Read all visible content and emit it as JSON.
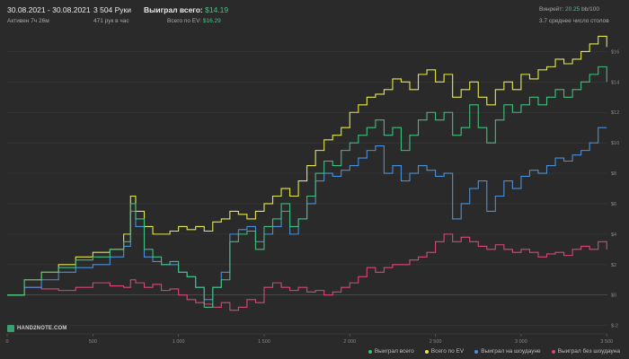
{
  "header": {
    "date_range": "30.08.2021 - 30.08.2021",
    "active_time": "Активен 7ч 26м",
    "hands": "3 504 Руки",
    "hands_per_hour": "471 рук в час",
    "won_label": "Выиграл всего:",
    "won_value": "$14.19",
    "ev_label": "Всего по EV:",
    "ev_value": "$16.29",
    "winrate_label": "Винрейт:",
    "winrate_value": "20.25",
    "winrate_unit": "bb/100",
    "avg_tables": "3.7 среднее число столов"
  },
  "logo": "HAND2NOTE.COM",
  "colors": {
    "background": "#2a2a2a",
    "grid": "#393939",
    "series_total": "#3fbf7f",
    "series_ev": "#e5e84a",
    "series_showdown": "#4a90d9",
    "series_nonshowdown": "#d9477a"
  },
  "chart_data": {
    "type": "line",
    "xlim": [
      0,
      3504
    ],
    "ylim": [
      -2.2,
      17.5
    ],
    "x_ticks": [
      "0",
      "500",
      "1 000",
      "1 500",
      "2 000",
      "2 500",
      "3 000",
      "3 500"
    ],
    "x_tick_values": [
      0,
      500,
      1000,
      1500,
      2000,
      2500,
      3000,
      3500
    ],
    "y_ticks": [
      "$-2",
      "$0",
      "$2",
      "$4",
      "$6",
      "$8",
      "$10",
      "$12",
      "$14",
      "$16"
    ],
    "y_tick_values": [
      -2,
      0,
      2,
      4,
      6,
      8,
      10,
      12,
      14,
      16
    ],
    "grid": true,
    "legend_position": "bottom-right",
    "series": [
      {
        "name": "Выиграл всего",
        "color": "#3fbf7f",
        "x": [
          0,
          100,
          200,
          300,
          400,
          500,
          600,
          680,
          720,
          750,
          800,
          850,
          900,
          950,
          1000,
          1050,
          1100,
          1150,
          1200,
          1250,
          1300,
          1350,
          1400,
          1450,
          1500,
          1550,
          1600,
          1650,
          1700,
          1750,
          1800,
          1850,
          1900,
          1950,
          2000,
          2050,
          2100,
          2150,
          2200,
          2250,
          2300,
          2350,
          2400,
          2450,
          2500,
          2550,
          2600,
          2650,
          2700,
          2750,
          2800,
          2850,
          2900,
          2950,
          3000,
          3050,
          3100,
          3150,
          3200,
          3250,
          3300,
          3350,
          3400,
          3450,
          3500
        ],
        "y": [
          0,
          1,
          1.5,
          1.8,
          2.3,
          2.5,
          3,
          3.5,
          6,
          5,
          3,
          2.5,
          2,
          2.2,
          1.5,
          1.2,
          0.5,
          -0.8,
          0.5,
          1,
          3.5,
          4,
          4.2,
          3,
          4.5,
          5,
          6,
          4.5,
          5,
          6.5,
          8,
          8.8,
          8.5,
          9.5,
          10,
          10.5,
          11,
          11.5,
          10.5,
          11,
          9.5,
          10.5,
          11.5,
          12,
          11.5,
          12,
          10.5,
          11,
          12.5,
          11,
          10,
          11.5,
          12.5,
          12,
          12.5,
          13,
          12.5,
          13,
          13.5,
          13,
          13.5,
          14,
          14.5,
          15,
          14
        ]
      },
      {
        "name": "Всего по EV",
        "color": "#e5e84a",
        "x": [
          0,
          100,
          200,
          300,
          400,
          500,
          600,
          680,
          720,
          750,
          800,
          850,
          900,
          950,
          1000,
          1050,
          1100,
          1150,
          1200,
          1250,
          1300,
          1350,
          1400,
          1450,
          1500,
          1550,
          1600,
          1650,
          1700,
          1750,
          1800,
          1850,
          1900,
          1950,
          2000,
          2050,
          2100,
          2150,
          2200,
          2250,
          2300,
          2350,
          2400,
          2450,
          2500,
          2550,
          2600,
          2650,
          2700,
          2750,
          2800,
          2850,
          2900,
          2950,
          3000,
          3050,
          3100,
          3150,
          3200,
          3250,
          3300,
          3350,
          3400,
          3450,
          3500
        ],
        "y": [
          0,
          1,
          1.5,
          2,
          2.5,
          2.8,
          3,
          4,
          6.5,
          5.5,
          4.5,
          4,
          4,
          4.2,
          4.5,
          4.3,
          4.5,
          4.2,
          4.8,
          5,
          5.5,
          5.3,
          5,
          5.5,
          6,
          6.5,
          7,
          6.5,
          7.5,
          8.5,
          9.5,
          10.2,
          10.5,
          11,
          12,
          12.5,
          13,
          13.2,
          13.5,
          14.2,
          14,
          13.5,
          14.5,
          14.8,
          14,
          14.5,
          13,
          13.5,
          14,
          13,
          12.5,
          13.5,
          14,
          13.5,
          14.5,
          14.2,
          14.8,
          15,
          15.5,
          15.2,
          15.5,
          16,
          16.5,
          17,
          16.3
        ]
      },
      {
        "name": "Выиграл на шоудауне",
        "color": "#4a90d9",
        "x": [
          0,
          100,
          200,
          300,
          400,
          500,
          600,
          680,
          720,
          750,
          800,
          850,
          900,
          950,
          1000,
          1050,
          1100,
          1150,
          1200,
          1250,
          1300,
          1350,
          1400,
          1450,
          1500,
          1550,
          1600,
          1650,
          1700,
          1750,
          1800,
          1850,
          1900,
          1950,
          2000,
          2050,
          2100,
          2150,
          2200,
          2250,
          2300,
          2350,
          2400,
          2450,
          2500,
          2550,
          2600,
          2650,
          2700,
          2750,
          2800,
          2850,
          2900,
          2950,
          3000,
          3050,
          3100,
          3150,
          3200,
          3250,
          3300,
          3350,
          3400,
          3450,
          3500
        ],
        "y": [
          0,
          0.5,
          1,
          1.5,
          1.8,
          2,
          2.5,
          3.2,
          5.5,
          4.5,
          2.5,
          2.2,
          2,
          2,
          1.5,
          1.2,
          0.5,
          -0.3,
          0.5,
          1.5,
          4,
          4.3,
          4.5,
          3.5,
          4,
          4.5,
          5.5,
          4,
          5,
          6,
          7.5,
          8,
          7.8,
          8.2,
          8.5,
          9,
          9.5,
          9.8,
          8,
          8.5,
          7.5,
          8,
          8.5,
          8.2,
          7.8,
          8,
          5,
          6,
          7,
          7.5,
          5.5,
          6.5,
          7.5,
          7,
          7.8,
          8.2,
          8,
          8.5,
          9,
          8.8,
          9.2,
          9.5,
          10,
          11,
          11
        ]
      },
      {
        "name": "Выиграл без шоудауна",
        "color": "#d9477a",
        "x": [
          0,
          100,
          200,
          300,
          400,
          500,
          600,
          680,
          720,
          750,
          800,
          850,
          900,
          950,
          1000,
          1050,
          1100,
          1150,
          1200,
          1250,
          1300,
          1350,
          1400,
          1450,
          1500,
          1550,
          1600,
          1650,
          1700,
          1750,
          1800,
          1850,
          1900,
          1950,
          2000,
          2050,
          2100,
          2150,
          2200,
          2250,
          2300,
          2350,
          2400,
          2450,
          2500,
          2550,
          2600,
          2650,
          2700,
          2750,
          2800,
          2850,
          2900,
          2950,
          3000,
          3050,
          3100,
          3150,
          3200,
          3250,
          3300,
          3350,
          3400,
          3450,
          3500
        ],
        "y": [
          0,
          0.5,
          0.4,
          0.3,
          0.5,
          0.8,
          0.6,
          0.5,
          1,
          0.8,
          0.5,
          0.7,
          0.3,
          0.4,
          0,
          -0.3,
          -0.5,
          -0.6,
          -0.8,
          -0.5,
          -1,
          -0.8,
          -0.3,
          -0.5,
          0.5,
          0.8,
          0.5,
          0.3,
          0.5,
          0.2,
          0.3,
          0,
          0.2,
          0.5,
          0.8,
          1.2,
          1.8,
          1.5,
          1.8,
          2,
          2,
          2.3,
          2.5,
          2.8,
          3.5,
          4,
          3.5,
          3.8,
          3.5,
          3.2,
          3,
          3.3,
          3,
          2.8,
          3,
          2.8,
          2.5,
          2.7,
          2.8,
          2.6,
          3,
          3.2,
          3,
          3.5,
          3
        ]
      }
    ]
  }
}
